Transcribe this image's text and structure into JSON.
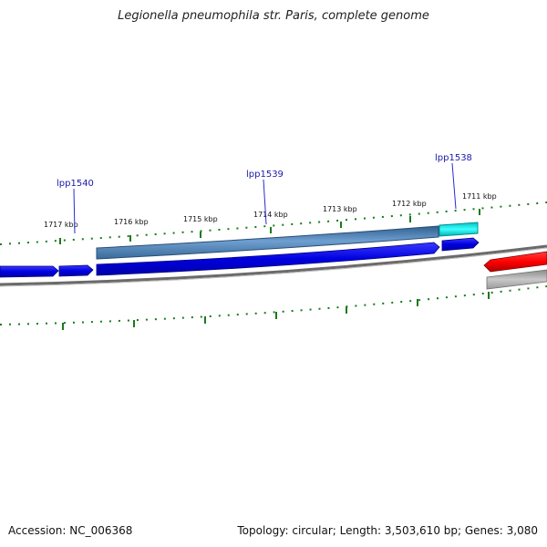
{
  "title": "Legionella pneumophila str. Paris, complete genome",
  "footer": {
    "accession": "Accession: NC_006368",
    "summary": "Topology: circular; Length: 3,503,610 bp; Genes: 3,080"
  },
  "tick_labels": [
    "1717 kbp",
    "1716 kbp",
    "1715 kbp",
    "1714 kbp",
    "1713 kbp",
    "1712 kbp",
    "1711 kbp"
  ],
  "gene_labels": [
    "lpp1540",
    "lpp1539",
    "lpp1538"
  ],
  "colors": {
    "forward_cds": "#0000dd",
    "blast_hit": "#4a7fb5",
    "blast_hit_short": "#00e5e5",
    "reverse_cds": "#e00000",
    "backbone": "#888888",
    "ticks": "#1a7a1a"
  }
}
